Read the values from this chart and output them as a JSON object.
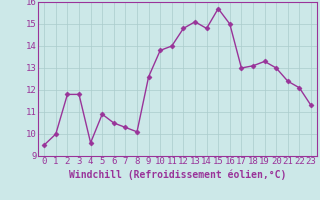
{
  "x": [
    0,
    1,
    2,
    3,
    4,
    5,
    6,
    7,
    8,
    9,
    10,
    11,
    12,
    13,
    14,
    15,
    16,
    17,
    18,
    19,
    20,
    21,
    22,
    23
  ],
  "y": [
    9.5,
    10.0,
    11.8,
    11.8,
    9.6,
    10.9,
    10.5,
    10.3,
    10.1,
    12.6,
    13.8,
    14.0,
    14.8,
    15.1,
    14.8,
    15.7,
    15.0,
    13.0,
    13.1,
    13.3,
    13.0,
    12.4,
    12.1,
    11.3
  ],
  "line_color": "#993399",
  "marker": "D",
  "marker_size": 2.5,
  "line_width": 1.0,
  "bg_color": "#cce8e8",
  "grid_color": "#aacccc",
  "xlabel": "Windchill (Refroidissement éolien,°C)",
  "xlabel_fontsize": 7,
  "tick_fontsize": 6.5,
  "ylim": [
    9,
    16
  ],
  "xlim": [
    -0.5,
    23.5
  ],
  "yticks": [
    9,
    10,
    11,
    12,
    13,
    14,
    15,
    16
  ],
  "xticks": [
    0,
    1,
    2,
    3,
    4,
    5,
    6,
    7,
    8,
    9,
    10,
    11,
    12,
    13,
    14,
    15,
    16,
    17,
    18,
    19,
    20,
    21,
    22,
    23
  ]
}
